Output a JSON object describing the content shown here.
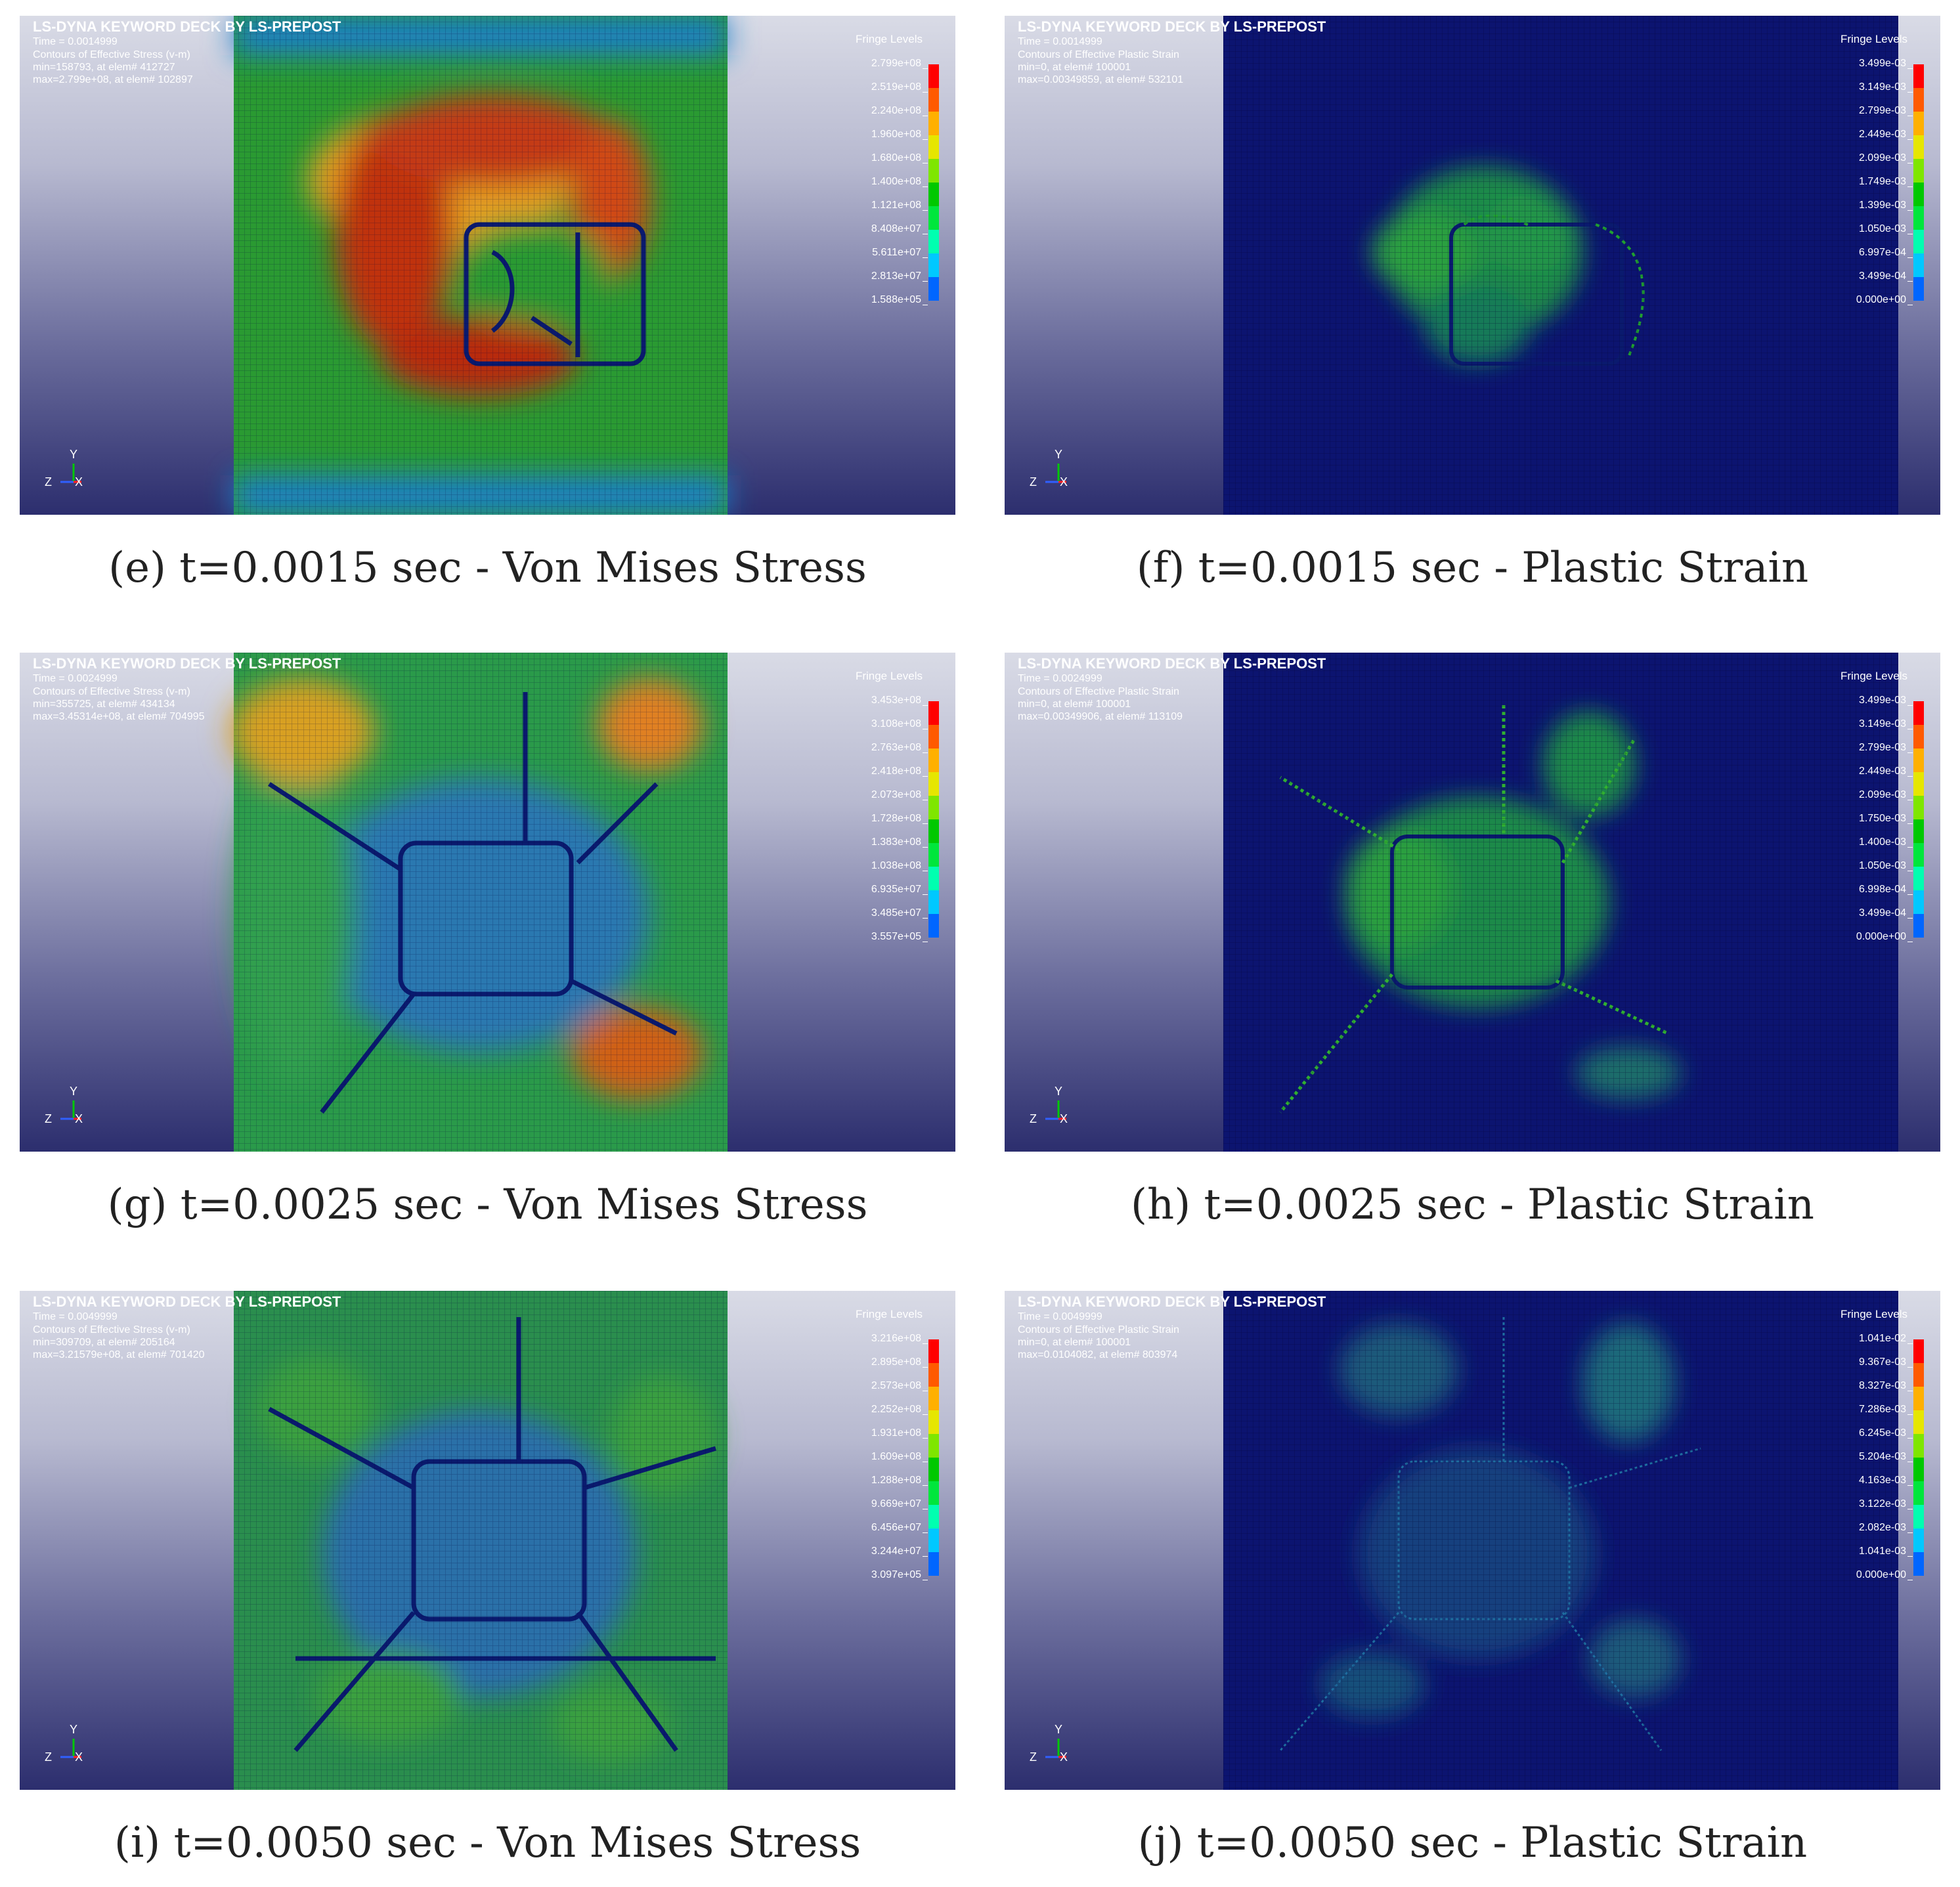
{
  "figure": {
    "software_header": "LS-DYNA KEYWORD DECK BY LS-PREPOST",
    "legend_title": "Fringe Levels",
    "colorbar": [
      "#0000ff",
      "#0066ff",
      "#00c8ff",
      "#00ffb0",
      "#00e63c",
      "#00c800",
      "#7fe600",
      "#e6e600",
      "#ffb000",
      "#ff5a00",
      "#ff0000"
    ],
    "panels": [
      {
        "id": "e",
        "kind": "stress",
        "time": "Time =  0.0014999",
        "contour": "Contours of Effective Stress (v-m)",
        "min": "min=158793, at elem# 412727",
        "max": "max=2.799e+08, at elem# 102897",
        "levels": [
          "2.799e+08",
          "2.519e+08",
          "2.240e+08",
          "1.960e+08",
          "1.680e+08",
          "1.400e+08",
          "1.121e+08",
          "8.408e+07",
          "5.611e+07",
          "2.813e+07",
          "1.588e+05"
        ],
        "caption": "(e) t=0.0015 sec - Von Mises Stress",
        "icon": "von-mises-stress-contour-plot"
      },
      {
        "id": "f",
        "kind": "strain",
        "time": "Time =  0.0014999",
        "contour": "Contours of Effective Plastic Strain",
        "min": "min=0, at elem# 100001",
        "max": "max=0.00349859, at elem# 532101",
        "levels": [
          "3.499e-03",
          "3.149e-03",
          "2.799e-03",
          "2.449e-03",
          "2.099e-03",
          "1.749e-03",
          "1.399e-03",
          "1.050e-03",
          "6.997e-04",
          "3.499e-04",
          "0.000e+00"
        ],
        "caption": "(f) t=0.0015 sec - Plastic Strain",
        "icon": "plastic-strain-contour-plot"
      },
      {
        "id": "g",
        "kind": "stress",
        "time": "Time =  0.0024999",
        "contour": "Contours of Effective Stress (v-m)",
        "min": "min=355725, at elem# 434134",
        "max": "max=3.45314e+08, at elem# 704995",
        "levels": [
          "3.453e+08",
          "3.108e+08",
          "2.763e+08",
          "2.418e+08",
          "2.073e+08",
          "1.728e+08",
          "1.383e+08",
          "1.038e+08",
          "6.935e+07",
          "3.485e+07",
          "3.557e+05"
        ],
        "caption": "(g) t=0.0025 sec - Von Mises Stress",
        "icon": "von-mises-stress-contour-plot"
      },
      {
        "id": "h",
        "kind": "strain",
        "time": "Time =  0.0024999",
        "contour": "Contours of Effective Plastic Strain",
        "min": "min=0, at elem# 100001",
        "max": "max=0.00349906, at elem# 113109",
        "levels": [
          "3.499e-03",
          "3.149e-03",
          "2.799e-03",
          "2.449e-03",
          "2.099e-03",
          "1.750e-03",
          "1.400e-03",
          "1.050e-03",
          "6.998e-04",
          "3.499e-04",
          "0.000e+00"
        ],
        "caption": "(h) t=0.0025 sec - Plastic Strain",
        "icon": "plastic-strain-contour-plot"
      },
      {
        "id": "i",
        "kind": "stress",
        "time": "Time =  0.0049999",
        "contour": "Contours of Effective Stress (v-m)",
        "min": "min=309709, at elem# 205164",
        "max": "max=3.21579e+08, at elem# 701420",
        "levels": [
          "3.216e+08",
          "2.895e+08",
          "2.573e+08",
          "2.252e+08",
          "1.931e+08",
          "1.609e+08",
          "1.288e+08",
          "9.669e+07",
          "6.456e+07",
          "3.244e+07",
          "3.097e+05"
        ],
        "caption": "(i) t=0.0050 sec - Von Mises Stress",
        "icon": "von-mises-stress-contour-plot"
      },
      {
        "id": "j",
        "kind": "strain",
        "time": "Time =  0.0049999",
        "contour": "Contours of Effective Plastic Strain",
        "min": "min=0, at elem# 100001",
        "max": "max=0.0104082, at elem# 803974",
        "levels": [
          "1.041e-02",
          "9.367e-03",
          "8.327e-03",
          "7.286e-03",
          "6.245e-03",
          "5.204e-03",
          "4.163e-03",
          "3.122e-03",
          "2.082e-03",
          "1.041e-03",
          "0.000e+00"
        ],
        "caption": "(j) t=0.0050 sec - Plastic Strain",
        "icon": "plastic-strain-contour-plot"
      }
    ],
    "axes": {
      "y": "Y",
      "z": "Z",
      "x": "X"
    }
  }
}
